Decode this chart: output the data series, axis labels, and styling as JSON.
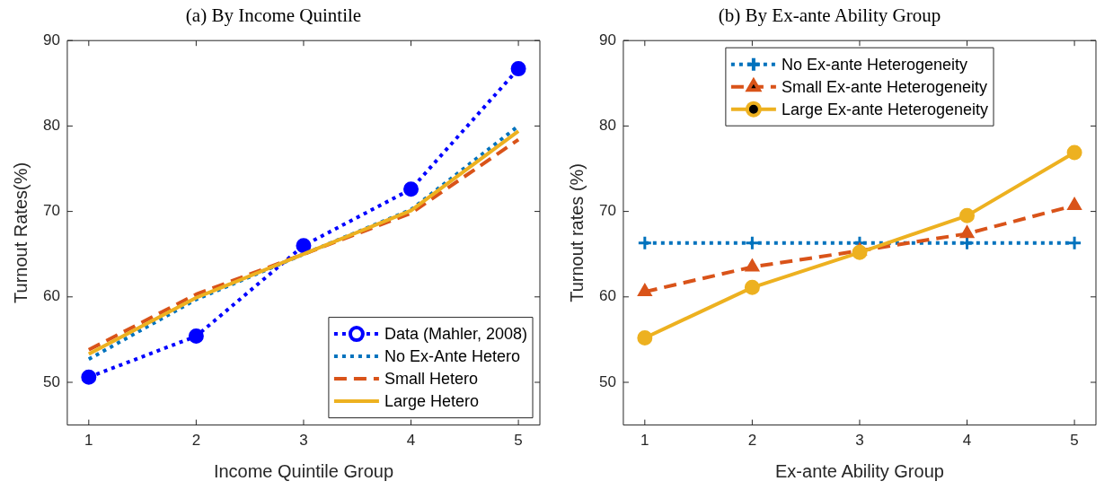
{
  "chart_data": [
    {
      "type": "line",
      "title": "(a) By Income Quintile",
      "xlabel": "Income Quintile Group",
      "ylabel": "Turnout Rates(%)",
      "x": [
        1,
        2,
        3,
        4,
        5
      ],
      "xlim": [
        0.8,
        5.2
      ],
      "xticks": [
        1,
        2,
        3,
        4,
        5
      ],
      "ylim": [
        45,
        90
      ],
      "yticks": [
        50,
        60,
        70,
        80,
        90
      ],
      "grid": false,
      "legend": "bottom right",
      "series": [
        {
          "name": "Data (Mahler, 2008)",
          "color": "#0000ff",
          "values": [
            50.6,
            55.4,
            66.0,
            72.6,
            86.7
          ],
          "line_style": "dotted",
          "marker": "circle"
        },
        {
          "name": "No Ex-Ante Hetero",
          "color": "#0072bd",
          "values": [
            52.7,
            59.7,
            65.0,
            70.2,
            80.0
          ],
          "line_style": "dotted",
          "marker": "none"
        },
        {
          "name": "Small Hetero",
          "color": "#d95319",
          "values": [
            53.8,
            60.3,
            65.0,
            69.8,
            78.4
          ],
          "line_style": "dashed",
          "marker": "none"
        },
        {
          "name": "Large Hetero",
          "color": "#edb120",
          "values": [
            53.3,
            59.9,
            65.0,
            70.1,
            79.4
          ],
          "line_style": "solid",
          "marker": "none"
        }
      ]
    },
    {
      "type": "line",
      "title": "(b) By Ex-ante Ability Group",
      "xlabel": "Ex-ante Ability Group",
      "ylabel": "Turnout rates (%)",
      "x": [
        1,
        2,
        3,
        4,
        5
      ],
      "xlim": [
        0.8,
        5.2
      ],
      "xticks": [
        1,
        2,
        3,
        4,
        5
      ],
      "ylim": [
        45,
        90
      ],
      "yticks": [
        50,
        60,
        70,
        80,
        90
      ],
      "grid": false,
      "legend": "top",
      "series": [
        {
          "name": "No Ex-ante Heterogeneity",
          "color": "#0072bd",
          "values": [
            66.3,
            66.3,
            66.3,
            66.3,
            66.3
          ],
          "line_style": "dotted",
          "marker": "cross"
        },
        {
          "name": "Small Ex-ante Heterogeneity",
          "color": "#d95319",
          "values": [
            60.6,
            63.5,
            65.4,
            67.4,
            70.7
          ],
          "line_style": "dashed",
          "marker": "triangle"
        },
        {
          "name": "Large Ex-ante Heterogeneity",
          "color": "#edb120",
          "values": [
            55.2,
            61.1,
            65.2,
            69.5,
            76.9
          ],
          "line_style": "solid",
          "marker": "circle"
        }
      ]
    }
  ]
}
